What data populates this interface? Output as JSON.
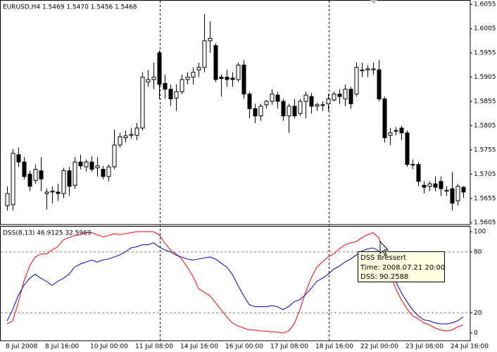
{
  "chart_data": [
    {
      "type": "candlestick",
      "title": "EURUSD,H4  1.5469 1.5470 1.5456 1.5468",
      "up_color": "#ffffff",
      "down_color": "#000000",
      "categories": [
        "8 Jul 2008",
        null,
        null,
        null,
        null,
        null,
        null,
        "8 Jul 16:00",
        null,
        null,
        null,
        null,
        null,
        null,
        null,
        "10 Jul 00:00",
        null,
        null,
        null,
        null,
        null,
        null,
        null,
        "11 Jul 08:00",
        null,
        null,
        null,
        null,
        null,
        null,
        null,
        "14 Jul 16:00",
        null,
        null,
        null,
        null,
        null,
        null,
        null,
        "16 Jul 00:00",
        null,
        null,
        null,
        null,
        null,
        null,
        null,
        "17 Jul 08:00",
        null,
        null,
        null,
        null,
        null,
        null,
        null,
        "18 Jul 16:00",
        null,
        null,
        null,
        null,
        null,
        null,
        null,
        "22 Jul 00:00",
        null,
        null,
        null,
        null,
        null,
        null,
        null,
        "23 Jul 08:00",
        null,
        null,
        null,
        null,
        null,
        null,
        null,
        "24 Jul 16:00",
        null,
        null
      ],
      "open": [
        1.564,
        1.5642,
        1.5745,
        1.573,
        1.5705,
        1.5692,
        1.5712,
        1.5665,
        1.5668,
        1.5668,
        1.5665,
        1.5712,
        1.5682,
        1.573,
        1.572,
        1.573,
        1.5718,
        1.5715,
        1.57,
        1.572,
        1.5765,
        1.578,
        1.5785,
        1.5785,
        1.58,
        1.5895,
        1.59,
        1.5955,
        1.5892,
        1.588,
        1.5862,
        1.5875,
        1.59,
        1.5905,
        1.592,
        1.5925,
        1.598,
        1.597,
        1.5905,
        1.5905,
        1.5903,
        1.59,
        1.593,
        1.587,
        1.584,
        1.5825,
        1.5848,
        1.5855,
        1.5868,
        1.5855,
        1.5825,
        1.5845,
        1.583,
        1.5855,
        1.5865,
        1.5845,
        1.5848,
        1.585,
        1.5858,
        1.587,
        1.586,
        1.588,
        1.587,
        1.5918,
        1.592,
        1.592,
        1.592,
        1.586,
        1.5785,
        1.5795,
        1.58,
        1.579,
        1.5725,
        1.5725,
        1.5682,
        1.568,
        1.5685,
        1.569,
        1.567,
        1.5675,
        1.565,
        1.5678
      ],
      "high": [
        1.568,
        1.5757,
        1.576,
        1.574,
        1.5712,
        1.5725,
        1.574,
        1.5675,
        1.568,
        1.5685,
        1.5718,
        1.572,
        1.574,
        1.5745,
        1.5735,
        1.5742,
        1.574,
        1.5722,
        1.5725,
        1.5797,
        1.579,
        1.5795,
        1.58,
        1.581,
        1.5915,
        1.592,
        1.5935,
        1.596,
        1.591,
        1.589,
        1.589,
        1.591,
        1.5915,
        1.5925,
        1.5935,
        1.6035,
        1.602,
        1.5975,
        1.591,
        1.592,
        1.5915,
        1.5935,
        1.594,
        1.5875,
        1.585,
        1.585,
        1.5858,
        1.588,
        1.5875,
        1.586,
        1.585,
        1.586,
        1.586,
        1.5875,
        1.5872,
        1.5852,
        1.5855,
        1.587,
        1.5875,
        1.588,
        1.589,
        1.5885,
        1.5935,
        1.5935,
        1.593,
        1.5935,
        1.594,
        1.5865,
        1.58,
        1.5802,
        1.5805,
        1.5795,
        1.5735,
        1.573,
        1.569,
        1.569,
        1.57,
        1.57,
        1.568,
        1.571,
        1.5685,
        1.568
      ],
      "low": [
        1.563,
        1.563,
        1.572,
        1.5695,
        1.567,
        1.5685,
        1.567,
        1.5632,
        1.5645,
        1.565,
        1.5655,
        1.566,
        1.5675,
        1.5715,
        1.571,
        1.571,
        1.57,
        1.5695,
        1.569,
        1.5715,
        1.576,
        1.577,
        1.5778,
        1.5775,
        1.5795,
        1.5885,
        1.588,
        1.586,
        1.586,
        1.5845,
        1.5835,
        1.587,
        1.589,
        1.589,
        1.5905,
        1.5915,
        1.5955,
        1.5895,
        1.5865,
        1.5885,
        1.5885,
        1.5895,
        1.586,
        1.582,
        1.581,
        1.5815,
        1.584,
        1.5848,
        1.584,
        1.5815,
        1.579,
        1.582,
        1.5825,
        1.582,
        1.583,
        1.5835,
        1.5835,
        1.5835,
        1.5855,
        1.585,
        1.5845,
        1.584,
        1.5865,
        1.5905,
        1.5905,
        1.591,
        1.5855,
        1.577,
        1.5765,
        1.5785,
        1.5775,
        1.572,
        1.5715,
        1.568,
        1.5665,
        1.567,
        1.567,
        1.566,
        1.566,
        1.563,
        1.564,
        1.5656
      ],
      "close": [
        1.5665,
        1.5748,
        1.573,
        1.57,
        1.568,
        1.5715,
        1.5695,
        1.5668,
        1.567,
        1.5665,
        1.5712,
        1.568,
        1.573,
        1.5722,
        1.573,
        1.5715,
        1.5722,
        1.57,
        1.572,
        1.5765,
        1.5782,
        1.5784,
        1.5787,
        1.58,
        1.5905,
        1.59,
        1.5905,
        1.589,
        1.588,
        1.586,
        1.5875,
        1.59,
        1.5905,
        1.5915,
        1.5925,
        1.598,
        1.5985,
        1.59,
        1.5902,
        1.59,
        1.59,
        1.593,
        1.587,
        1.584,
        1.5825,
        1.5845,
        1.5855,
        1.587,
        1.5855,
        1.5825,
        1.5845,
        1.5825,
        1.5855,
        1.5868,
        1.5845,
        1.5848,
        1.5847,
        1.586,
        1.587,
        1.5865,
        1.588,
        1.585,
        1.5925,
        1.592,
        1.5922,
        1.5922,
        1.586,
        1.578,
        1.579,
        1.5795,
        1.579,
        1.5725,
        1.5725,
        1.569,
        1.5678,
        1.5685,
        1.5678,
        1.5675,
        1.5672,
        1.5645,
        1.568,
        1.5668
      ],
      "ylim": [
        1.5601,
        1.6064
      ],
      "yticks": [
        1.6055,
        1.6005,
        1.5955,
        1.5905,
        1.5855,
        1.5805,
        1.5755,
        1.5705,
        1.5655,
        1.5605
      ]
    },
    {
      "type": "line",
      "title": "DSS(8,13) 46.9125 32.5969",
      "series": [
        {
          "color": "#ff0000",
          "values": [
            9,
            12,
            30,
            51,
            66,
            75,
            78,
            78,
            82,
            85,
            92,
            94,
            96,
            97,
            99,
            99,
            97,
            95,
            96,
            98,
            97,
            98,
            99,
            100,
            100,
            100,
            100,
            97,
            89,
            82,
            78,
            73,
            65,
            56,
            44,
            40,
            37,
            30,
            23,
            16,
            10,
            7,
            5,
            3,
            3,
            2,
            2,
            1,
            1,
            0,
            2,
            9,
            23,
            40,
            54,
            65,
            70,
            75,
            78,
            83,
            87,
            89,
            90,
            94,
            97,
            99,
            94,
            75,
            58,
            44,
            33,
            24,
            17,
            14,
            10,
            8,
            5,
            3,
            2,
            3,
            6,
            8
          ]
        },
        {
          "color": "#0000cd",
          "values": [
            12,
            23,
            37,
            47,
            54,
            58,
            54,
            51,
            47,
            51,
            54,
            58,
            65,
            68,
            70,
            72,
            70,
            72,
            73,
            75,
            77,
            80,
            84,
            85,
            87,
            87,
            89,
            85,
            82,
            80,
            77,
            75,
            73,
            72,
            73,
            74,
            75,
            73,
            69,
            65,
            58,
            47,
            37,
            28,
            26,
            26,
            26,
            27,
            26,
            23,
            26,
            31,
            33,
            38,
            44,
            51,
            54,
            58,
            63,
            66,
            70,
            73,
            77,
            81,
            83,
            84,
            81,
            72,
            61,
            51,
            40,
            31,
            23,
            17,
            13,
            12,
            10,
            9,
            9,
            10,
            12,
            16
          ]
        }
      ],
      "ylim": [
        -7.6,
        104.9
      ],
      "yticks": [
        100,
        80,
        20,
        0
      ],
      "levels": [
        80,
        20
      ]
    }
  ],
  "tooltip": {
    "title": "DSS Bressert",
    "lines": [
      "Time: 2008.07.21 20:00",
      "DSS: 90.2588"
    ]
  }
}
